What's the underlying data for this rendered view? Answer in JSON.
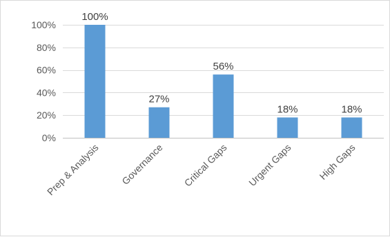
{
  "chart_data": {
    "type": "bar",
    "categories": [
      "Prep & Analysis",
      "Governance",
      "Critical Gaps",
      "Urgent Gaps",
      "High Gaps"
    ],
    "values": [
      100,
      27,
      56,
      18,
      18
    ],
    "data_labels": [
      "100%",
      "27%",
      "56%",
      "18%",
      "18%"
    ],
    "ylim": [
      0,
      100
    ],
    "yticks": [
      0,
      20,
      40,
      60,
      80,
      100
    ],
    "ytick_labels": [
      "0%",
      "20%",
      "40%",
      "60%",
      "80%",
      "100%"
    ],
    "grid": true,
    "legend": "none",
    "title": "",
    "xlabel": "",
    "ylabel": "",
    "colors": {
      "bar": "#5b9bd5",
      "grid": "#d9d9d9",
      "axis": "#bfbfbf"
    }
  }
}
